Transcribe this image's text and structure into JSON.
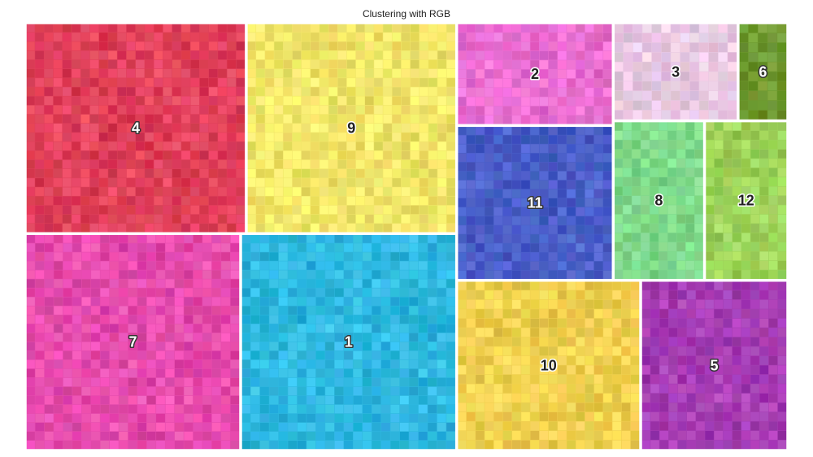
{
  "chart_data": {
    "type": "treemap",
    "title": "Clustering with RGB",
    "clusters": [
      {
        "label": "1",
        "value": 76.9,
        "color": "#2fb8e0",
        "label_color": "#ffffff"
      },
      {
        "label": "2",
        "value": 26.4,
        "color": "#ea6fd2",
        "label_color": "#222222"
      },
      {
        "label": "3",
        "value": 20.1,
        "color": "#e9c9e3",
        "label_color": "#222222"
      },
      {
        "label": "4",
        "value": 76.5,
        "color": "#e0405a",
        "label_color": "#ffffff"
      },
      {
        "label": "5",
        "value": 41.1,
        "color": "#a63db4",
        "label_color": "#ffffff"
      },
      {
        "label": "6",
        "value": 8.0,
        "color": "#6f9a30",
        "label_color": "#ffffff"
      },
      {
        "label": "7",
        "value": 76.7,
        "color": "#e64cae",
        "label_color": "#ffffff"
      },
      {
        "label": "8",
        "value": 23.9,
        "color": "#7fd98c",
        "label_color": "#222222"
      },
      {
        "label": "9",
        "value": 72.8,
        "color": "#f2e66a",
        "label_color": "#222222"
      },
      {
        "label": "10",
        "value": 51.4,
        "color": "#f0d050",
        "label_color": "#222222"
      },
      {
        "label": "11",
        "value": 39.8,
        "color": "#4a5fc8",
        "label_color": "#ffffff"
      },
      {
        "label": "12",
        "value": 21.8,
        "color": "#9ed35a",
        "label_color": "#222222"
      }
    ]
  }
}
